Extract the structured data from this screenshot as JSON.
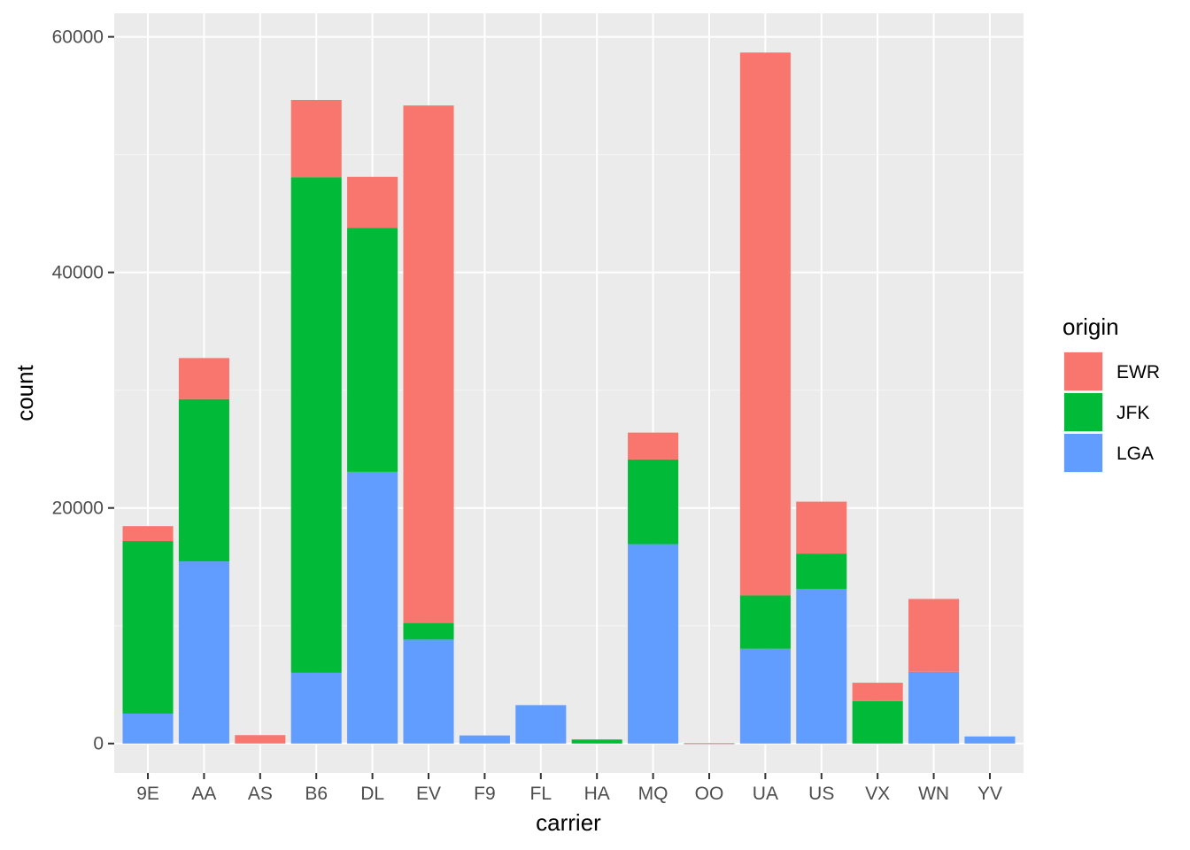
{
  "chart_data": {
    "type": "bar",
    "stacked": true,
    "xlabel": "carrier",
    "ylabel": "count",
    "ylim": [
      -2500,
      62000
    ],
    "yticks": [
      0,
      20000,
      40000,
      60000
    ],
    "categories": [
      "9E",
      "AA",
      "AS",
      "B6",
      "DL",
      "EV",
      "F9",
      "FL",
      "HA",
      "MQ",
      "OO",
      "UA",
      "US",
      "VX",
      "WN",
      "YV"
    ],
    "legend_title": "origin",
    "legend_position": "right",
    "grid": true,
    "series": [
      {
        "name": "LGA",
        "color": "#619CFF",
        "values": [
          2541,
          15459,
          0,
          6002,
          23067,
          8826,
          685,
          3260,
          0,
          16928,
          26,
          8044,
          13136,
          0,
          6087,
          601
        ]
      },
      {
        "name": "JFK",
        "color": "#00BA38",
        "values": [
          14651,
          13783,
          0,
          42076,
          20701,
          1408,
          0,
          0,
          342,
          7193,
          0,
          4534,
          2995,
          3596,
          0,
          0
        ]
      },
      {
        "name": "EWR",
        "color": "#F8766D",
        "values": [
          1268,
          3487,
          714,
          6557,
          4342,
          43939,
          0,
          0,
          0,
          2276,
          6,
          46087,
          4405,
          1566,
          6188,
          0
        ]
      }
    ],
    "legend_order": [
      "EWR",
      "JFK",
      "LGA"
    ]
  },
  "style": {
    "panel_bg": "#EBEBEB",
    "grid_major": "#FFFFFF",
    "grid_minor": "#F5F5F5"
  }
}
